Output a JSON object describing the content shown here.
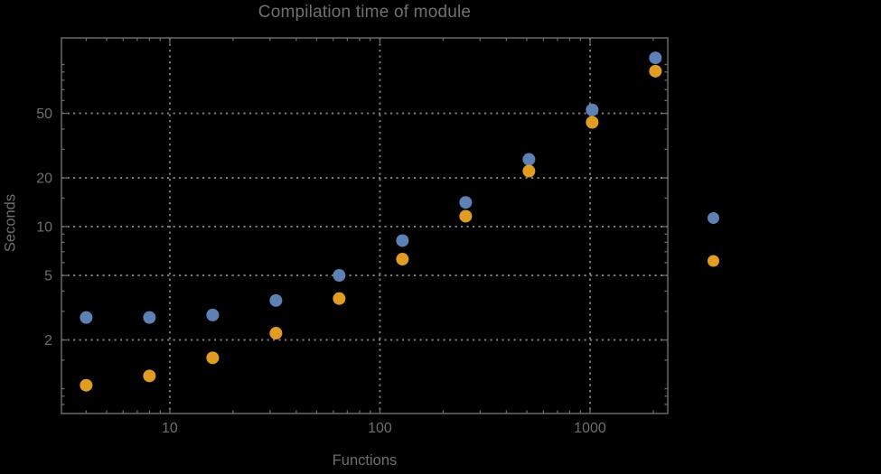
{
  "chart_data": {
    "type": "scatter",
    "title": "Compilation time of module",
    "xlabel": "Functions",
    "ylabel": "Seconds",
    "x_scale": "log",
    "y_scale": "log",
    "x_range": [
      3.05,
      2344
    ],
    "y_range": [
      0.703,
      146
    ],
    "grid": "dotted lines at major ticks, both axes",
    "x_ticks": {
      "major": [
        {
          "v": 10,
          "label": "10"
        },
        {
          "v": 100,
          "label": "100"
        },
        {
          "v": 1000,
          "label": "1000"
        }
      ],
      "minor": [
        4,
        5,
        6,
        7,
        8,
        9,
        20,
        30,
        40,
        50,
        60,
        70,
        80,
        90,
        200,
        300,
        400,
        500,
        600,
        700,
        800,
        900,
        2000
      ]
    },
    "y_ticks": {
      "major": [
        {
          "v": 2,
          "label": "2"
        },
        {
          "v": 5,
          "label": "5"
        },
        {
          "v": 10,
          "label": "10"
        },
        {
          "v": 20,
          "label": "20"
        },
        {
          "v": 50,
          "label": "50"
        }
      ],
      "minor": [
        0.8,
        0.9,
        1,
        1.5,
        3,
        4,
        6,
        7,
        8,
        9,
        15,
        30,
        40,
        60,
        70,
        80,
        90,
        100
      ]
    },
    "x": [
      4,
      8,
      16,
      32,
      64,
      128,
      256,
      512,
      1024,
      2048
    ],
    "series": [
      {
        "name": "",
        "color": "#5E81B5",
        "values": [
          2.75,
          2.75,
          2.85,
          3.5,
          5.0,
          8.2,
          14.1,
          26,
          52.5,
          110
        ]
      },
      {
        "name": "",
        "color": "#E19C24",
        "values": [
          1.05,
          1.2,
          1.55,
          2.2,
          3.6,
          6.3,
          11.6,
          22,
          44,
          91
        ]
      }
    ],
    "legend": {
      "position": "outside-right",
      "items": [
        {
          "label": "",
          "color": "#5E81B5"
        },
        {
          "label": "",
          "color": "#E19C24"
        }
      ]
    }
  },
  "colors": {
    "background": "#000000",
    "frame": "#696969",
    "grid": "#7a7a7a",
    "text": "#6e6e6e",
    "series_blue": "#5E81B5",
    "series_orange": "#E19C24"
  }
}
